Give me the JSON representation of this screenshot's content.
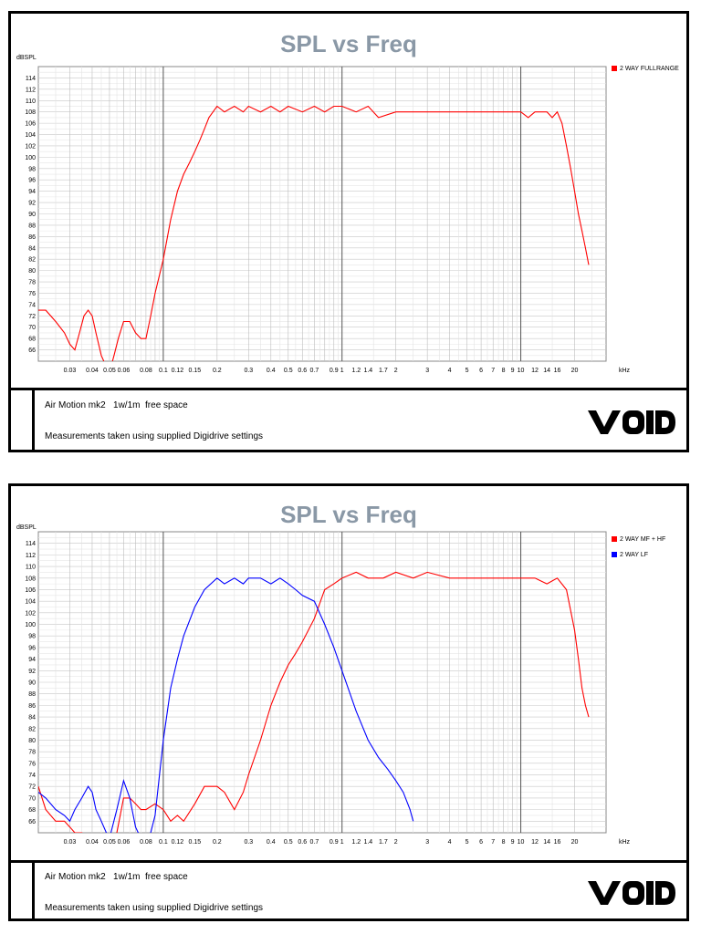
{
  "charts": [
    {
      "title": "SPL vs Freq",
      "ylabel": "dBSPL",
      "xlabel": "kHz",
      "footer_line1": "Air Motion mk2   1w/1m  free space",
      "footer_line2": "Measurements taken using supplied Digidrive settings",
      "logo_text": "VOID"
    },
    {
      "title": "SPL vs Freq",
      "ylabel": "dBSPL",
      "xlabel": "kHz",
      "footer_line1": "Air Motion mk2   1w/1m  free space",
      "footer_line2": "Measurements taken using supplied Digidrive settings",
      "logo_text": "VOID"
    }
  ],
  "chart_data": [
    {
      "type": "line",
      "title": "SPL vs Freq",
      "xlabel": "kHz",
      "ylabel": "dBSPL",
      "x_scale": "log",
      "xlim": [
        0.02,
        30
      ],
      "ylim": [
        64,
        116
      ],
      "grid": true,
      "legend_position": "top-right",
      "y_ticks": [
        66,
        68,
        70,
        72,
        74,
        76,
        78,
        80,
        82,
        84,
        86,
        88,
        90,
        92,
        94,
        96,
        98,
        100,
        102,
        104,
        106,
        108,
        110,
        112,
        114
      ],
      "x_tick_labels": [
        "0.03",
        "0.04",
        "0.05",
        "0.06",
        "0.08",
        "0.1",
        "0.12",
        "0.15",
        "0.2",
        "0.3",
        "0.4",
        "0.5",
        "0.6",
        "0.7",
        "0.9",
        "1",
        "1.2",
        "1.4",
        "1.7",
        "2",
        "3",
        "4",
        "5",
        "6",
        "7",
        "8",
        "9",
        "10",
        "12",
        "14",
        "16",
        "20"
      ],
      "x_tick_values": [
        0.03,
        0.04,
        0.05,
        0.06,
        0.08,
        0.1,
        0.12,
        0.15,
        0.2,
        0.3,
        0.4,
        0.5,
        0.6,
        0.7,
        0.9,
        1,
        1.2,
        1.4,
        1.7,
        2,
        3,
        4,
        5,
        6,
        7,
        8,
        9,
        10,
        12,
        14,
        16,
        20
      ],
      "series": [
        {
          "name": "2 WAY FULLRANGE",
          "color": "#ff0000",
          "x": [
            0.02,
            0.022,
            0.025,
            0.028,
            0.03,
            0.032,
            0.034,
            0.036,
            0.038,
            0.04,
            0.042,
            0.045,
            0.048,
            0.05,
            0.053,
            0.056,
            0.06,
            0.065,
            0.07,
            0.075,
            0.08,
            0.085,
            0.09,
            0.1,
            0.11,
            0.12,
            0.13,
            0.14,
            0.15,
            0.16,
            0.17,
            0.18,
            0.2,
            0.22,
            0.25,
            0.28,
            0.3,
            0.35,
            0.4,
            0.45,
            0.5,
            0.6,
            0.7,
            0.8,
            0.9,
            1,
            1.2,
            1.4,
            1.6,
            2,
            2.5,
            3,
            4,
            5,
            6,
            7,
            8,
            9,
            10,
            11,
            12,
            13,
            14,
            15,
            16,
            17,
            18,
            19,
            20,
            21,
            22,
            23,
            24
          ],
          "values": [
            73,
            73,
            71,
            69,
            67,
            66,
            69,
            72,
            73,
            72,
            69,
            65,
            63,
            62,
            65,
            68,
            71,
            71,
            69,
            68,
            68,
            72,
            76,
            82,
            89,
            94,
            97,
            99,
            101,
            103,
            105,
            107,
            109,
            108,
            109,
            108,
            109,
            108,
            109,
            108,
            109,
            108,
            109,
            108,
            109,
            109,
            108,
            109,
            107,
            108,
            108,
            108,
            108,
            108,
            108,
            108,
            108,
            108,
            108,
            107,
            108,
            108,
            108,
            107,
            108,
            106,
            102,
            98,
            94,
            90,
            87,
            84,
            81
          ]
        }
      ]
    },
    {
      "type": "line",
      "title": "SPL vs Freq",
      "xlabel": "kHz",
      "ylabel": "dBSPL",
      "x_scale": "log",
      "xlim": [
        0.02,
        30
      ],
      "ylim": [
        64,
        116
      ],
      "grid": true,
      "legend_position": "top-right",
      "y_ticks": [
        66,
        68,
        70,
        72,
        74,
        76,
        78,
        80,
        82,
        84,
        86,
        88,
        90,
        92,
        94,
        96,
        98,
        100,
        102,
        104,
        106,
        108,
        110,
        112,
        114
      ],
      "x_tick_labels": [
        "0.03",
        "0.04",
        "0.05",
        "0.06",
        "0.08",
        "0.1",
        "0.12",
        "0.15",
        "0.2",
        "0.3",
        "0.4",
        "0.5",
        "0.6",
        "0.7",
        "0.9",
        "1",
        "1.2",
        "1.4",
        "1.7",
        "2",
        "3",
        "4",
        "5",
        "6",
        "7",
        "8",
        "9",
        "10",
        "12",
        "14",
        "16",
        "20"
      ],
      "x_tick_values": [
        0.03,
        0.04,
        0.05,
        0.06,
        0.08,
        0.1,
        0.12,
        0.15,
        0.2,
        0.3,
        0.4,
        0.5,
        0.6,
        0.7,
        0.9,
        1,
        1.2,
        1.4,
        1.7,
        2,
        3,
        4,
        5,
        6,
        7,
        8,
        9,
        10,
        12,
        14,
        16,
        20
      ],
      "series": [
        {
          "name": "2 WAY MF + HF",
          "color": "#ff0000",
          "x": [
            0.02,
            0.022,
            0.025,
            0.028,
            0.03,
            0.032,
            0.035,
            0.04,
            0.045,
            0.05,
            0.055,
            0.06,
            0.065,
            0.07,
            0.075,
            0.08,
            0.09,
            0.1,
            0.11,
            0.12,
            0.13,
            0.15,
            0.17,
            0.2,
            0.22,
            0.25,
            0.28,
            0.3,
            0.35,
            0.4,
            0.45,
            0.5,
            0.55,
            0.6,
            0.7,
            0.8,
            0.9,
            1,
            1.2,
            1.4,
            1.7,
            2,
            2.5,
            3,
            4,
            5,
            6,
            7,
            8,
            9,
            10,
            12,
            14,
            16,
            18,
            20,
            21,
            22,
            23,
            24
          ],
          "values": [
            72,
            68,
            66,
            66,
            65,
            64,
            64,
            63,
            63,
            62,
            64,
            70,
            70,
            69,
            68,
            68,
            69,
            68,
            66,
            67,
            66,
            69,
            72,
            72,
            71,
            68,
            71,
            74,
            80,
            86,
            90,
            93,
            95,
            97,
            101,
            106,
            107,
            108,
            109,
            108,
            108,
            109,
            108,
            109,
            108,
            108,
            108,
            108,
            108,
            108,
            108,
            108,
            107,
            108,
            106,
            99,
            94,
            89,
            86,
            84
          ]
        },
        {
          "name": "2 WAY LF",
          "color": "#0000ff",
          "x": [
            0.02,
            0.022,
            0.025,
            0.028,
            0.03,
            0.032,
            0.035,
            0.038,
            0.04,
            0.042,
            0.045,
            0.048,
            0.05,
            0.055,
            0.06,
            0.065,
            0.07,
            0.075,
            0.08,
            0.085,
            0.09,
            0.1,
            0.11,
            0.12,
            0.13,
            0.15,
            0.17,
            0.2,
            0.22,
            0.25,
            0.28,
            0.3,
            0.35,
            0.4,
            0.45,
            0.5,
            0.55,
            0.6,
            0.7,
            0.8,
            0.9,
            1,
            1.2,
            1.4,
            1.6,
            1.8,
            2,
            2.2,
            2.4,
            2.5
          ],
          "values": [
            71,
            70,
            68,
            67,
            66,
            68,
            70,
            72,
            71,
            68,
            66,
            64,
            63,
            68,
            73,
            70,
            65,
            63,
            63,
            64,
            67,
            80,
            89,
            94,
            98,
            103,
            106,
            108,
            107,
            108,
            107,
            108,
            108,
            107,
            108,
            107,
            106,
            105,
            104,
            100,
            96,
            92,
            85,
            80,
            77,
            75,
            73,
            71,
            68,
            66
          ]
        }
      ]
    }
  ]
}
